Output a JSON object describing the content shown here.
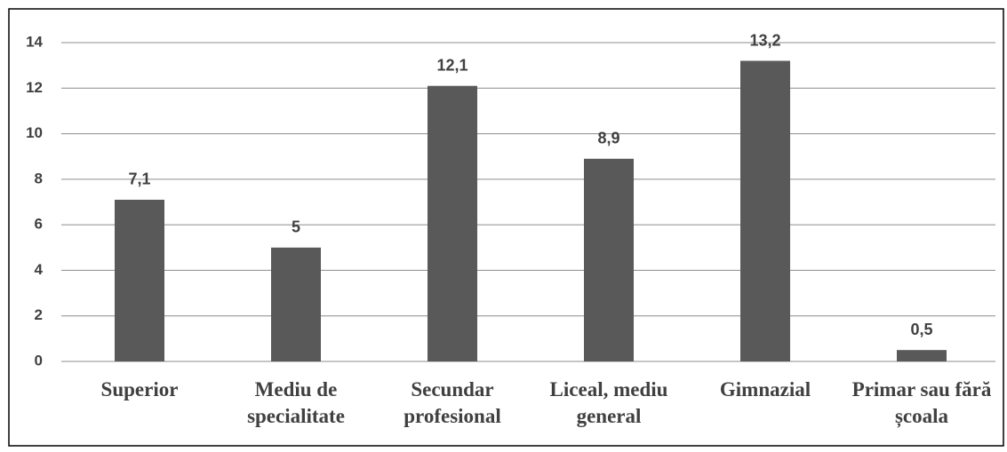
{
  "chart_data": {
    "type": "bar",
    "categories": [
      "Superior",
      "Mediu de specialitate",
      "Secundar profesional",
      "Liceal, mediu general",
      "Gimnazial",
      "Primar sau fără școala"
    ],
    "values": [
      7.1,
      5,
      12.1,
      8.9,
      13.2,
      0.5
    ],
    "value_labels": [
      "7,1",
      "5",
      "12,1",
      "8,9",
      "13,2",
      "0,5"
    ],
    "color": "#595959",
    "ylim": [
      0,
      14
    ],
    "yticks": [
      0,
      2,
      4,
      6,
      8,
      10,
      12,
      14
    ],
    "grid": true
  }
}
